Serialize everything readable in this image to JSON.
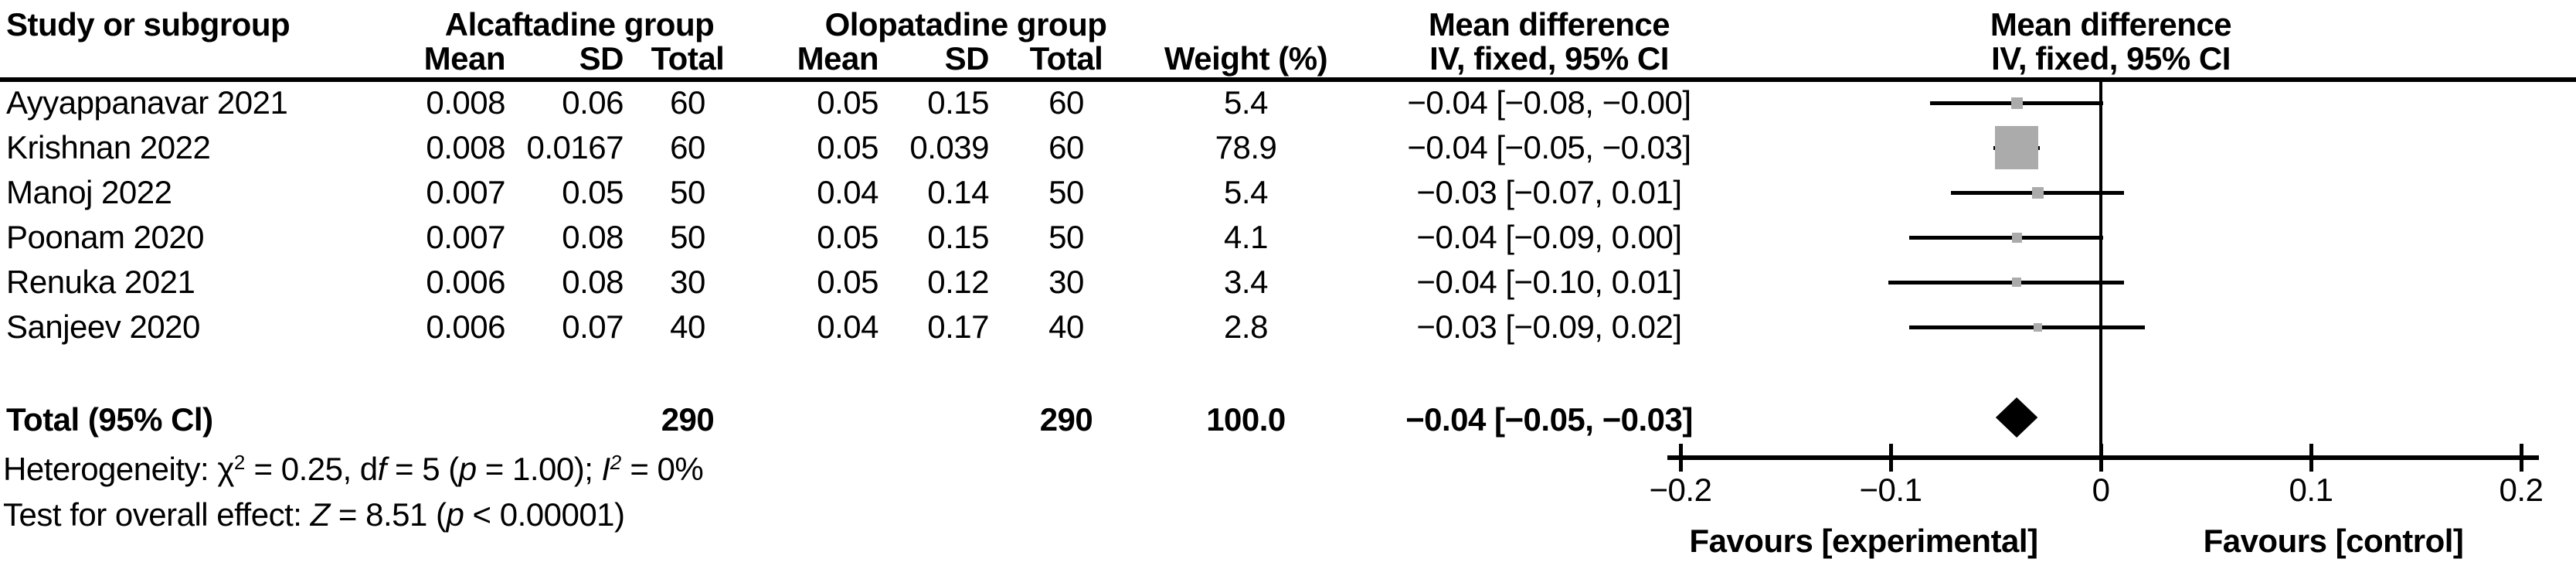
{
  "header": {
    "study": "Study or subgroup",
    "alcaftadine_group": "Alcaftadine group",
    "olopatadine_group": "Olopatadine group",
    "mean": "Mean",
    "sd": "SD",
    "total": "Total",
    "weight": "Weight (%)",
    "mean_difference": "Mean difference",
    "iv_fixed": "IV, fixed, 95% CI"
  },
  "rows": [
    {
      "study": "Ayyappanavar 2021",
      "a_mean": "0.008",
      "a_sd": "0.06",
      "a_total": "60",
      "o_mean": "0.05",
      "o_sd": "0.15",
      "o_total": "60",
      "weight": "5.4",
      "md_ci": "−0.04 [−0.08, −0.00]"
    },
    {
      "study": "Krishnan 2022",
      "a_mean": "0.008",
      "a_sd": "0.0167",
      "a_total": "60",
      "o_mean": "0.05",
      "o_sd": "0.039",
      "o_total": "60",
      "weight": "78.9",
      "md_ci": "−0.04 [−0.05, −0.03]"
    },
    {
      "study": "Manoj 2022",
      "a_mean": "0.007",
      "a_sd": "0.05",
      "a_total": "50",
      "o_mean": "0.04",
      "o_sd": "0.14",
      "o_total": "50",
      "weight": "5.4",
      "md_ci": "−0.03 [−0.07, 0.01]"
    },
    {
      "study": "Poonam 2020",
      "a_mean": "0.007",
      "a_sd": "0.08",
      "a_total": "50",
      "o_mean": "0.05",
      "o_sd": "0.15",
      "o_total": "50",
      "weight": "4.1",
      "md_ci": "−0.04 [−0.09, 0.00]"
    },
    {
      "study": "Renuka 2021",
      "a_mean": "0.006",
      "a_sd": "0.08",
      "a_total": "30",
      "o_mean": "0.05",
      "o_sd": "0.12",
      "o_total": "30",
      "weight": "3.4",
      "md_ci": "−0.04 [−0.10, 0.01]"
    },
    {
      "study": "Sanjeev 2020",
      "a_mean": "0.006",
      "a_sd": "0.07",
      "a_total": "40",
      "o_mean": "0.04",
      "o_sd": "0.17",
      "o_total": "40",
      "weight": "2.8",
      "md_ci": "−0.03 [−0.09, 0.02]"
    }
  ],
  "total_row": {
    "label": "Total (95% Cl)",
    "a_total": "290",
    "o_total": "290",
    "weight": "100.0",
    "md_ci": "−0.04 [−0.05, −0.03]"
  },
  "heterogeneity": {
    "p1": "Heterogeneity: χ",
    "p1_sup": "2",
    "p2": " = 0.25, d",
    "p3_italic": "f",
    "p4": " = 5 (",
    "p5_italic": "p",
    "p6": " = 1.00); ",
    "p7_italic": "I",
    "p7_sup": "2",
    "p8": " = 0%"
  },
  "overall_effect": {
    "p1": "Test for overall effect: ",
    "p2_italic": "Z",
    "p3": " = 8.51 (",
    "p4_italic": "p",
    "p5": " < 0.00001)"
  },
  "chart_data": {
    "type": "forest",
    "effect_measure": "Mean difference, IV, fixed, 95% CI",
    "studies": [
      {
        "name": "Ayyappanavar 2021",
        "md": -0.04,
        "ci": [
          -0.08,
          -0.0
        ],
        "weight": 5.4
      },
      {
        "name": "Krishnan 2022",
        "md": -0.04,
        "ci": [
          -0.05,
          -0.03
        ],
        "weight": 78.9
      },
      {
        "name": "Manoj 2022",
        "md": -0.03,
        "ci": [
          -0.07,
          0.01
        ],
        "weight": 5.4
      },
      {
        "name": "Poonam 2020",
        "md": -0.04,
        "ci": [
          -0.09,
          0.0
        ],
        "weight": 4.1
      },
      {
        "name": "Renuka 2021",
        "md": -0.04,
        "ci": [
          -0.1,
          0.01
        ],
        "weight": 3.4
      },
      {
        "name": "Sanjeev 2020",
        "md": -0.03,
        "ci": [
          -0.09,
          0.02
        ],
        "weight": 2.8
      }
    ],
    "total": {
      "md": -0.04,
      "ci": [
        -0.05,
        -0.03
      ],
      "weight": 100.0
    },
    "x_axis": {
      "min": -0.2,
      "max": 0.2,
      "ticks": [
        -0.2,
        -0.1,
        0,
        0.1,
        0.2
      ],
      "tick_labels": [
        "−0.2",
        "−0.1",
        "0",
        "0.1",
        "0.2"
      ]
    },
    "favours_left": "Favours [experimental]",
    "favours_right": "Favours [control]",
    "marker_color": "#ababab",
    "diamond_color": "#000000"
  }
}
